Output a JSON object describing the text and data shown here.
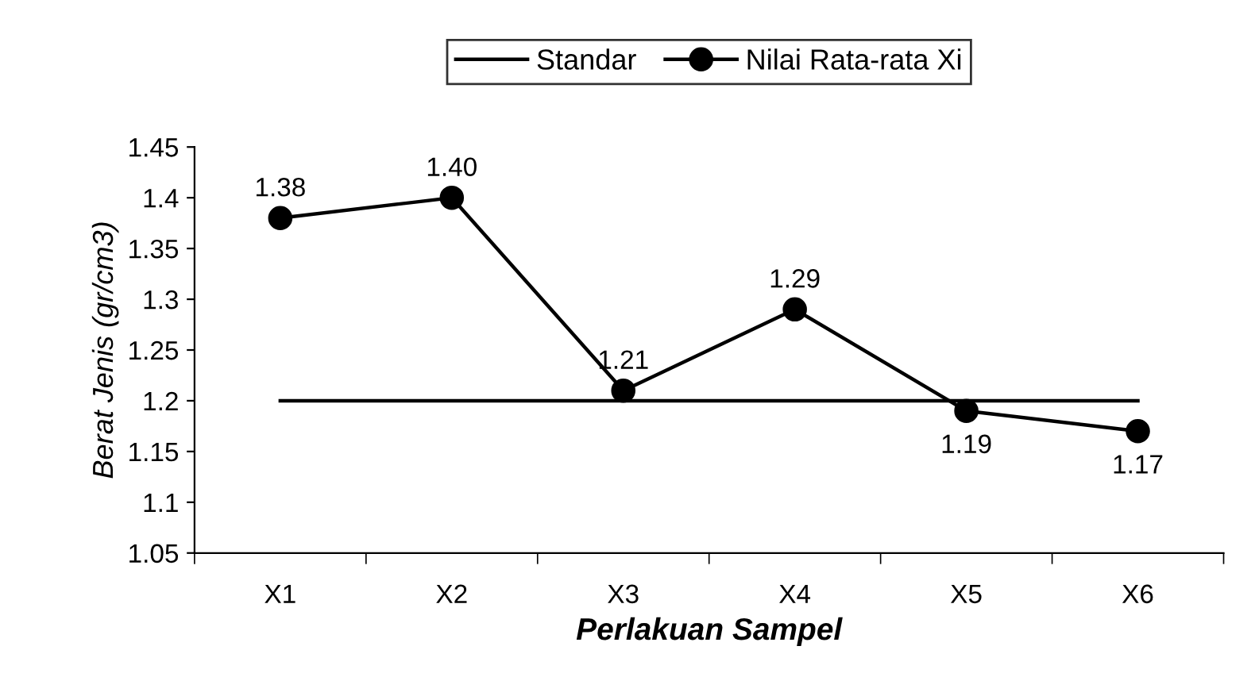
{
  "chart_data": {
    "type": "line",
    "xlabel": "Perlakuan Sampel",
    "ylabel": "Berat Jenis (gr/cm3)",
    "categories": [
      "X1",
      "X2",
      "X3",
      "X4",
      "X5",
      "X6"
    ],
    "series": [
      {
        "name": "Standar",
        "color": "#000000",
        "marker": "none",
        "values": [
          1.2,
          1.2,
          1.2,
          1.2,
          1.2,
          1.2
        ]
      },
      {
        "name": "Nilai Rata-rata Xi",
        "color": "#000000",
        "marker": "circle",
        "values": [
          1.38,
          1.4,
          1.21,
          1.29,
          1.19,
          1.17
        ],
        "value_labels": [
          "1.38",
          "1.40",
          "1.21",
          "1.29",
          "1.19",
          "1.17"
        ]
      }
    ],
    "ylim": [
      1.05,
      1.45
    ],
    "yticks": [
      1.05,
      1.1,
      1.15,
      1.2,
      1.25,
      1.3,
      1.35,
      1.4,
      1.45
    ],
    "grid": false,
    "legend": "top",
    "line_style": "solid"
  }
}
